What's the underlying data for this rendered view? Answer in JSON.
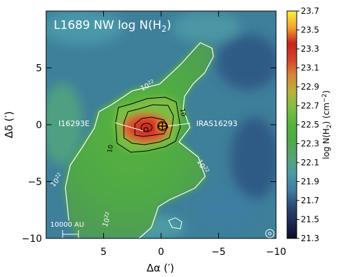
{
  "chart_data": {
    "type": "heatmap",
    "title": "L1689 NW log N(H",
    "title_sub": "2",
    "title_end": ")",
    "xlabel": "Δα (′)",
    "ylabel": "Δδ (′)",
    "xlim": [
      10,
      -10
    ],
    "ylim": [
      -10,
      10
    ],
    "x_ticks": [
      5,
      0,
      -5,
      -10
    ],
    "x_tick_labels": [
      "5",
      "0",
      "−5",
      "−10"
    ],
    "y_ticks": [
      5,
      0,
      -5,
      -10
    ],
    "y_tick_labels": [
      "5",
      "0",
      "−5",
      "−10"
    ],
    "colorbar": {
      "label": "log N(H",
      "label_sub": "2",
      "label_end": ") (cm",
      "label_sup": "−2",
      "label_close": ")",
      "range": [
        21.3,
        23.7
      ],
      "ticks": [
        23.7,
        23.5,
        23.3,
        23.1,
        22.9,
        22.7,
        22.5,
        22.3,
        22.1,
        21.9,
        21.7,
        21.5,
        21.3
      ],
      "colormap": [
        "#0b0b25",
        "#1d2a52",
        "#2d4b74",
        "#3f7ea0",
        "#4f9aa4",
        "#57a376",
        "#4faa45",
        "#57b23c",
        "#7cbd44",
        "#b4b43c",
        "#d6883a",
        "#d6442c",
        "#c7231f",
        "#f3a52f",
        "#fdef3a"
      ]
    },
    "sources": [
      {
        "name": "I16293E",
        "dx": 1.2,
        "dy": 0.0
      },
      {
        "name": "IRAS16293",
        "dx": 0.0,
        "dy": 0.0
      }
    ],
    "contours": [
      {
        "label": "10",
        "sup": "22",
        "level": 22.0
      },
      {
        "label": "10",
        "sup": "22",
        "level": 22.0
      },
      {
        "label": "10",
        "sup": "22",
        "level": 22.0
      },
      {
        "label": "10",
        "sup": "22",
        "level": 22.0
      },
      {
        "label": "10",
        "sup": "23",
        "level": 23.0
      },
      {
        "label": "10",
        "sup": "23",
        "level": 23.0
      }
    ],
    "scalebar": {
      "label": "10000 AU"
    },
    "grid": false
  }
}
